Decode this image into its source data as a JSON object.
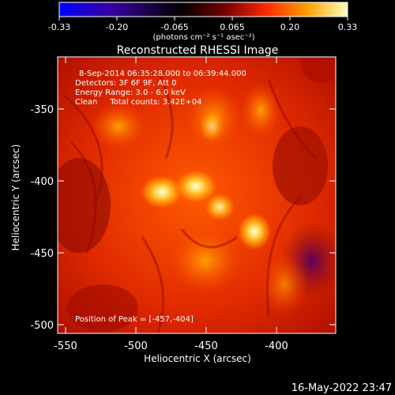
{
  "colorbar": {
    "ticks": [
      "-0.33",
      "-0.20",
      "-0.065",
      "0.065",
      "0.20",
      "0.33"
    ],
    "unit_label": "(photons cm⁻² s⁻¹ asec⁻²)"
  },
  "plot": {
    "title": "Reconstructed RHESSI Image",
    "info_lines": [
      "8-Sep-2014 06:35:28.000 to 06:39:44.000",
      "Detectors: 3F 6F 9F, Att 0",
      "Energy Range: 3.0 - 6.0 keV",
      "Clean     Total counts: 3.42E+04"
    ],
    "peak_label": "Position of Peak = [-457,-404]",
    "xlabel": "Heliocentric X (arcsec)",
    "ylabel": "Heliocentric Y (arcsec)",
    "xticks": [
      "-550",
      "-500",
      "-450",
      "-400"
    ],
    "yticks": [
      "-350",
      "-400",
      "-450",
      "-500"
    ]
  },
  "footer": {
    "timestamp": "16-May-2022 23:47"
  },
  "colors": {
    "background": "#000000",
    "text": "#ffffff",
    "colormap": [
      "#0000ff",
      "#3a00a0",
      "#000000",
      "#7a0000",
      "#ff2a00",
      "#ff9f00",
      "#ffffc0"
    ]
  }
}
